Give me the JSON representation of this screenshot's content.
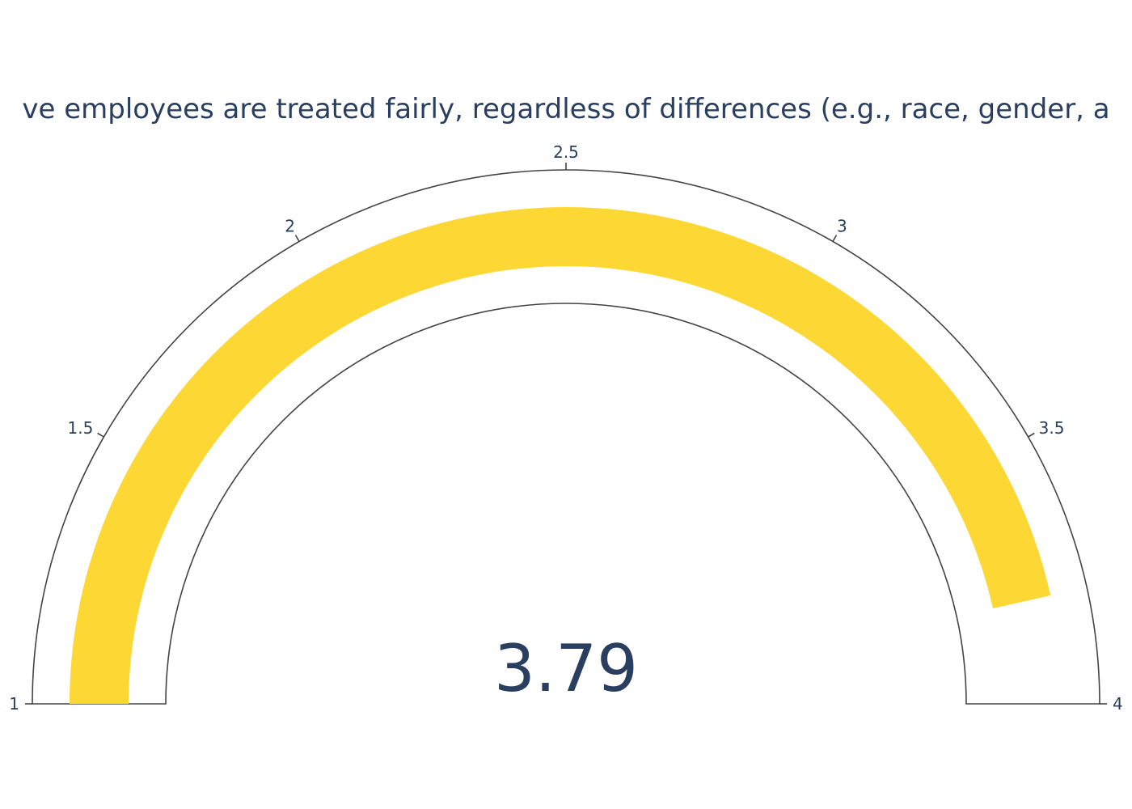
{
  "chart_data": {
    "type": "gauge",
    "title": "ve employees are treated fairly, regardless of differences (e.g., race, gender, a",
    "value": 3.79,
    "value_label": "3.79",
    "range": [
      1,
      4
    ],
    "ticks": [
      {
        "value": 1,
        "label": "1"
      },
      {
        "value": 1.5,
        "label": "1.5"
      },
      {
        "value": 2,
        "label": "2"
      },
      {
        "value": 2.5,
        "label": "2.5"
      },
      {
        "value": 3,
        "label": "3"
      },
      {
        "value": 3.5,
        "label": "3.5"
      },
      {
        "value": 4,
        "label": "4"
      }
    ],
    "bar_color": "#fdd835",
    "outline_color": "#444444",
    "text_color": "#2a3f5f"
  }
}
